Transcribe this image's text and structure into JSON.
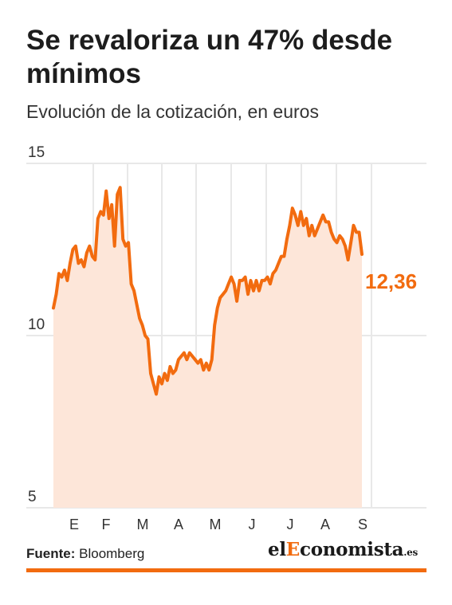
{
  "title": "Se revaloriza un 47% desde mínimos",
  "subtitle": "Evolución de la cotización, en euros",
  "source_label": "Fuente:",
  "source_value": "Bloomberg",
  "logo": {
    "prefix": "el",
    "accent": "E",
    "main": "conomista",
    "suffix": ".es"
  },
  "colors": {
    "line": "#f26b0f",
    "area": "#fde6d9",
    "grid": "#e8e8e8",
    "accent": "#f26b0f",
    "bar": "#f26b0f"
  },
  "chart_data": {
    "type": "area",
    "title": "Se revaloriza un 47% desde mínimos",
    "ylabel": "Evolución de la cotización, en euros",
    "ylim": [
      5,
      15
    ],
    "y_ticks": [
      "15",
      "10",
      "5"
    ],
    "y_tick_values": [
      15,
      10,
      5
    ],
    "x_ticks": [
      "E",
      "F",
      "M",
      "A",
      "M",
      "J",
      "J",
      "A",
      "S"
    ],
    "grid": true,
    "last_value_label": "12,36",
    "series": [
      {
        "values": [
          10.8,
          11.2,
          11.8,
          11.7,
          11.9,
          11.6,
          12.1,
          12.5,
          12.6,
          12.1,
          12.2,
          12.0,
          12.4,
          12.6,
          12.3,
          12.2,
          13.4,
          13.6,
          13.5,
          14.2,
          13.4,
          13.8,
          12.6,
          14.1,
          14.3,
          12.8,
          12.6,
          12.7,
          11.5,
          11.3,
          10.9,
          10.5,
          10.3,
          10.0,
          9.9,
          8.9,
          8.6,
          8.3,
          8.8,
          8.6,
          8.9,
          8.7,
          9.1,
          8.9,
          9.0,
          9.3,
          9.4,
          9.5,
          9.3,
          9.5,
          9.4,
          9.3,
          9.2,
          9.3,
          9.0,
          9.2,
          9.0,
          9.3,
          10.3,
          10.8,
          11.1,
          11.2,
          11.3,
          11.5,
          11.7,
          11.5,
          11.0,
          11.6,
          11.6,
          11.7,
          11.2,
          11.6,
          11.3,
          11.6,
          11.3,
          11.6,
          11.6,
          11.7,
          11.5,
          11.8,
          11.9,
          12.1,
          12.3,
          12.3,
          12.8,
          13.2,
          13.7,
          13.5,
          13.2,
          13.6,
          13.2,
          13.4,
          12.9,
          13.2,
          12.9,
          13.1,
          13.3,
          13.5,
          13.3,
          13.3,
          13.0,
          12.8,
          12.7,
          12.9,
          12.8,
          12.6,
          12.2,
          12.7,
          13.2,
          13.0,
          13.0,
          12.36
        ]
      }
    ]
  }
}
